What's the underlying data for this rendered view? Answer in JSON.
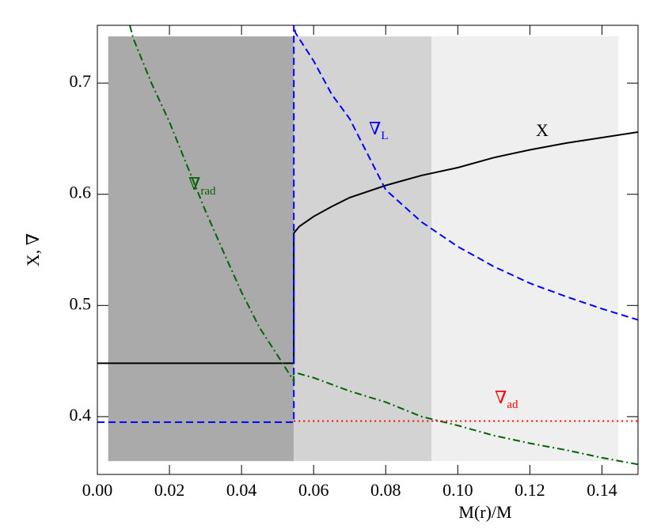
{
  "chart_data": {
    "type": "line",
    "xlabel": "M(r)/M",
    "ylabel": "X, ∇",
    "xlim": [
      0,
      0.15
    ],
    "ylim": [
      0.348,
      0.752
    ],
    "xticks": [
      {
        "value": 0,
        "label": "0.00"
      },
      {
        "value": 0.02,
        "label": "0.02"
      },
      {
        "value": 0.04,
        "label": "0.04"
      },
      {
        "value": 0.06,
        "label": "0.06"
      },
      {
        "value": 0.08,
        "label": "0.08"
      },
      {
        "value": 0.1,
        "label": "0.10"
      },
      {
        "value": 0.12,
        "label": "0.12"
      },
      {
        "value": 0.14,
        "label": "0.14"
      }
    ],
    "yticks": [
      0.4,
      0.5,
      0.6,
      0.7
    ],
    "shaded_regions": [
      {
        "x": [
          0.003,
          0.0545
        ],
        "y": [
          0.36,
          0.742
        ],
        "color": "#aaaaaa"
      },
      {
        "x": [
          0.0545,
          0.0927
        ],
        "y": [
          0.36,
          0.742
        ],
        "color": "#d3d3d3"
      },
      {
        "x": [
          0.0927,
          0.1445
        ],
        "y": [
          0.36,
          0.742
        ],
        "color": "#efefef"
      }
    ],
    "series": [
      {
        "name": "X",
        "color": "#000000",
        "style": "solid",
        "x": [
          0,
          0.0545,
          0.0545,
          0.056,
          0.06,
          0.065,
          0.07,
          0.08,
          0.09,
          0.1,
          0.11,
          0.12,
          0.13,
          0.14,
          0.15
        ],
        "values": [
          0.448,
          0.448,
          0.565,
          0.571,
          0.58,
          0.589,
          0.597,
          0.608,
          0.617,
          0.624,
          0.633,
          0.64,
          0.646,
          0.651,
          0.656
        ]
      },
      {
        "name": "∇",
        "subscript": "L",
        "color": "#0000ff",
        "style": "dashed",
        "x": [
          0,
          0.0545,
          0.0545,
          0.055,
          0.06,
          0.065,
          0.07,
          0.08,
          0.09,
          0.1,
          0.11,
          0.12,
          0.13,
          0.14,
          0.15
        ],
        "values": [
          0.395,
          0.395,
          0.752,
          0.745,
          0.72,
          0.69,
          0.668,
          0.604,
          0.575,
          0.553,
          0.535,
          0.52,
          0.508,
          0.497,
          0.487
        ]
      },
      {
        "name": "∇",
        "subscript": "rad",
        "color": "#006400",
        "style": "dashdot",
        "x": [
          0.009,
          0.01,
          0.015,
          0.02,
          0.025,
          0.03,
          0.035,
          0.04,
          0.045,
          0.05,
          0.0545,
          0.0545,
          0.06,
          0.07,
          0.08,
          0.09,
          0.1,
          0.11,
          0.12,
          0.13,
          0.14,
          0.15
        ],
        "values": [
          0.752,
          0.74,
          0.7,
          0.665,
          0.625,
          0.585,
          0.548,
          0.512,
          0.48,
          0.455,
          0.432,
          0.44,
          0.435,
          0.423,
          0.413,
          0.4,
          0.392,
          0.383,
          0.376,
          0.37,
          0.363,
          0.357
        ]
      },
      {
        "name": "∇",
        "subscript": "ad",
        "color": "#ff0000",
        "style": "dotted",
        "x": [
          0.0545,
          0.15
        ],
        "values": [
          0.396,
          0.396
        ]
      }
    ]
  }
}
